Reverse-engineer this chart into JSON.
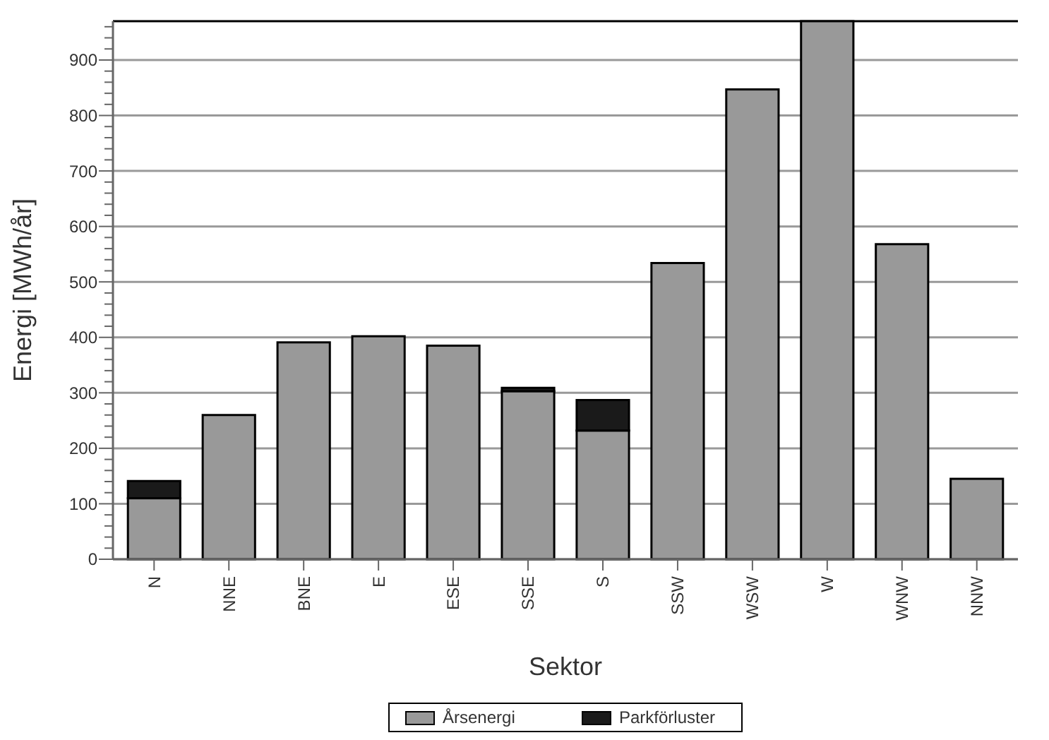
{
  "chart_data": {
    "type": "bar",
    "xlabel": "Sektor",
    "ylabel": "Energi [MWh/år]",
    "stacked": true,
    "grid": "y",
    "legend": "bottom",
    "categories": [
      "N",
      "NNE",
      "BNE",
      "E",
      "ESE",
      "SSE",
      "S",
      "SSW",
      "WSW",
      "W",
      "WNW",
      "NNW"
    ],
    "series": [
      {
        "name": "Årsenergi",
        "color": "#999999",
        "values": [
          110,
          260,
          391,
          402,
          385,
          303,
          232,
          534,
          847,
          970,
          568,
          145
        ]
      },
      {
        "name": "Parkförluster",
        "color": "#1a1a1a",
        "values": [
          31,
          0,
          0,
          0,
          0,
          6,
          55,
          0,
          0,
          0,
          0,
          0
        ]
      }
    ],
    "ylim": [
      0,
      970
    ],
    "yticks": [
      0,
      {
        "value": 20,
        "label": null
      },
      {
        "value": 40,
        "label": null
      },
      {
        "value": 60,
        "label": null
      },
      {
        "value": 80,
        "label": null
      },
      100,
      {
        "value": 120,
        "label": null
      },
      {
        "value": 140,
        "label": null
      },
      {
        "value": 160,
        "label": null
      },
      {
        "value": 180,
        "label": null
      },
      200,
      {
        "value": 220,
        "label": null
      },
      {
        "value": 240,
        "label": null
      },
      {
        "value": 260,
        "label": null
      },
      {
        "value": 280,
        "label": null
      },
      300,
      {
        "value": 320,
        "label": null
      },
      {
        "value": 340,
        "label": null
      },
      {
        "value": 360,
        "label": null
      },
      {
        "value": 380,
        "label": null
      },
      400,
      {
        "value": 420,
        "label": null
      },
      {
        "value": 440,
        "label": null
      },
      {
        "value": 460,
        "label": null
      },
      {
        "value": 480,
        "label": null
      },
      500,
      {
        "value": 520,
        "label": null
      },
      {
        "value": 540,
        "label": null
      },
      {
        "value": 560,
        "label": null
      },
      {
        "value": 580,
        "label": null
      },
      600,
      {
        "value": 620,
        "label": null
      },
      {
        "value": 640,
        "label": null
      },
      {
        "value": 660,
        "label": null
      },
      {
        "value": 680,
        "label": null
      },
      700,
      {
        "value": 720,
        "label": null
      },
      {
        "value": 740,
        "label": null
      },
      {
        "value": 760,
        "label": null
      },
      {
        "value": 780,
        "label": null
      },
      800,
      {
        "value": 820,
        "label": null
      },
      {
        "value": 840,
        "label": null
      },
      {
        "value": 860,
        "label": null
      },
      {
        "value": 880,
        "label": null
      },
      900,
      {
        "value": 920,
        "label": null
      },
      {
        "value": 940,
        "label": null
      },
      {
        "value": 960,
        "label": null
      }
    ]
  }
}
